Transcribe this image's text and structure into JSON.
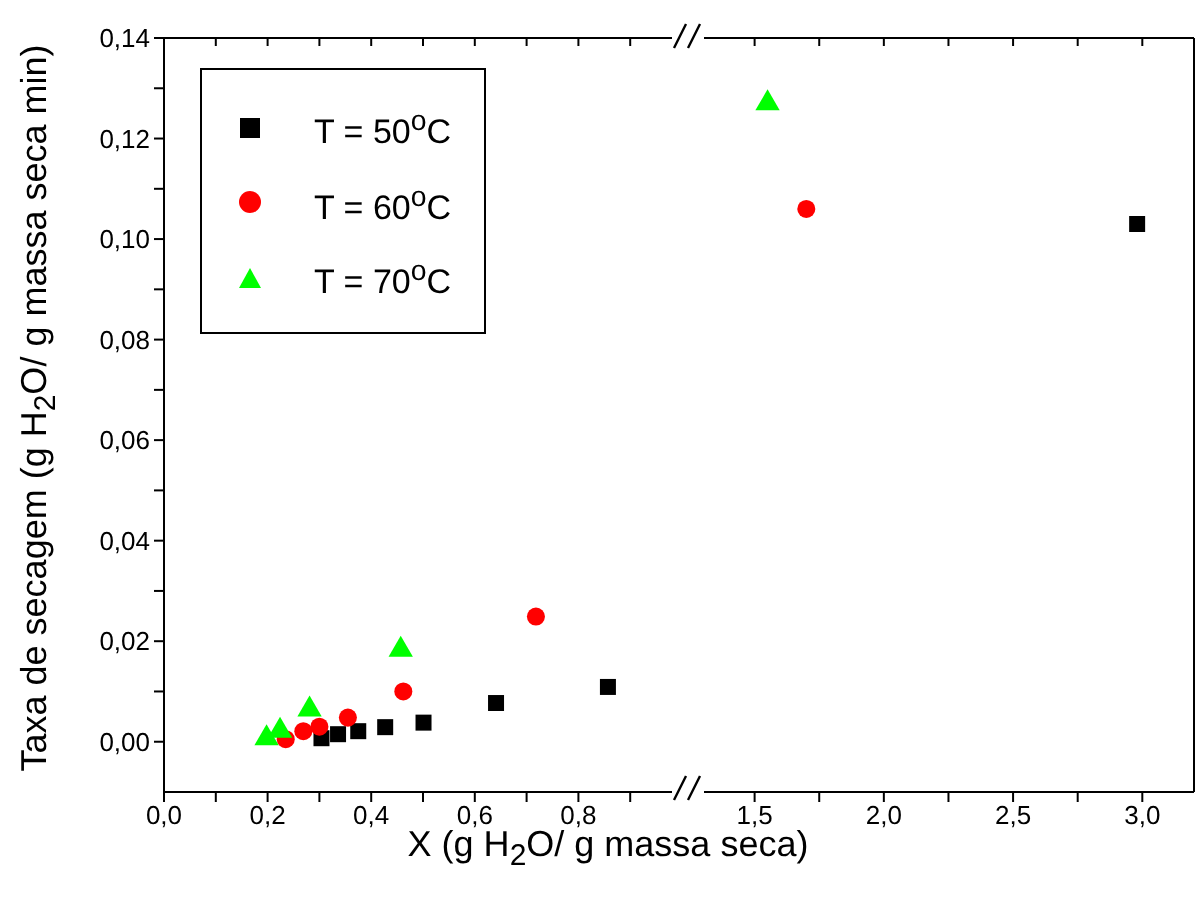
{
  "chart_data": [
    {
      "type": "scatter",
      "xlabel": "X (g H$_{2}$O/ g massa seca)",
      "ylabel": "Taxa de secagem (g H$_{2}$O/ g massa seca min)",
      "xlim": [
        0,
        1.0
      ],
      "xticks": [
        {
          "value": 0,
          "label": "0,0"
        },
        {
          "value": 0.1,
          "label": null
        },
        {
          "value": 0.2,
          "label": "0,2"
        },
        {
          "value": 0.3,
          "label": null
        },
        {
          "value": 0.4,
          "label": "0,4"
        },
        {
          "value": 0.5,
          "label": null
        },
        {
          "value": 0.6,
          "label": "0,6"
        },
        {
          "value": 0.7,
          "label": null
        },
        {
          "value": 0.8,
          "label": "0,8"
        },
        {
          "value": 0.9,
          "label": null
        }
      ],
      "ylim": [
        -0.01,
        0.14
      ],
      "yticks": [
        {
          "value": 0,
          "label": "0,00"
        },
        {
          "value": 0.01,
          "label": null
        },
        {
          "value": 0.02,
          "label": "0,02"
        },
        {
          "value": 0.03,
          "label": null
        },
        {
          "value": 0.04,
          "label": "0,04"
        },
        {
          "value": 0.05,
          "label": null
        },
        {
          "value": 0.06,
          "label": "0,06"
        },
        {
          "value": 0.07,
          "label": null
        },
        {
          "value": 0.08,
          "label": "0,08"
        },
        {
          "value": 0.09,
          "label": null
        },
        {
          "value": 0.1,
          "label": "0,10"
        },
        {
          "value": 0.11,
          "label": null
        },
        {
          "value": 0.12,
          "label": "0,12"
        },
        {
          "value": 0.13,
          "label": null
        },
        {
          "value": 0.14,
          "label": "0,14"
        }
      ],
      "legend": "top left",
      "grid": false,
      "series": [
        {
          "name": "T = 50$^{o}$C",
          "color": "#000000",
          "marker": "square",
          "x": [
            0.304,
            0.336,
            0.375,
            0.427,
            0.501,
            0.641,
            0.857
          ],
          "values": [
            0.0007,
            0.0015,
            0.0021,
            0.0029,
            0.0038,
            0.0077,
            0.0109
          ]
        },
        {
          "name": "T = 60$^{o}$C",
          "color": "#ff0000",
          "marker": "circle",
          "x": [
            0.235,
            0.269,
            0.3,
            0.355,
            0.462,
            0.718
          ],
          "values": [
            0.0005,
            0.0021,
            0.003,
            0.0048,
            0.01,
            0.0249
          ]
        },
        {
          "name": "T = 70$^{o}$C",
          "color": "#00ff00",
          "marker": "triangle",
          "x": [
            0.198,
            0.224,
            0.281,
            0.457
          ],
          "values": [
            0.0007,
            0.0022,
            0.0064,
            0.0183
          ]
        }
      ]
    },
    {
      "type": "scatter",
      "xlim": [
        1.25,
        3.2
      ],
      "xticks": [
        {
          "value": 1.5,
          "label": "1,5"
        },
        {
          "value": 1.75,
          "label": null
        },
        {
          "value": 2.0,
          "label": "2,0"
        },
        {
          "value": 2.25,
          "label": null
        },
        {
          "value": 2.5,
          "label": "2,5"
        },
        {
          "value": 2.75,
          "label": null
        },
        {
          "value": 3.0,
          "label": "3,0"
        }
      ],
      "ylim": [
        -0.01,
        0.14
      ],
      "tick_labels": "x",
      "series": [
        {
          "color": "#000000",
          "marker": "square",
          "x": [
            2.98
          ],
          "values": [
            0.103
          ]
        },
        {
          "color": "#ff0000",
          "marker": "circle",
          "x": [
            1.7
          ],
          "values": [
            0.106
          ]
        },
        {
          "color": "#00ff00",
          "marker": "triangle",
          "x": [
            1.55
          ],
          "values": [
            0.127
          ]
        }
      ]
    }
  ]
}
